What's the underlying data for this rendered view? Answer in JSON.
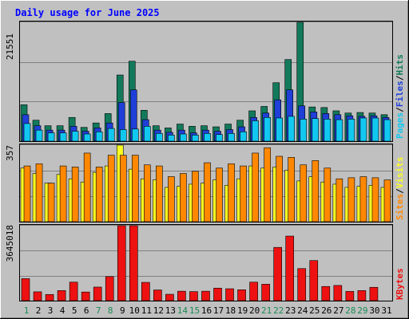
{
  "title": "Daily usage for June 2025",
  "colors": {
    "frame": "#c0c0c0",
    "plot": "#c0c0c0",
    "grid": "#808080",
    "title": "#0000ff",
    "axis_number": "#000000",
    "weekend_day": "#1a8c55",
    "hits": "#127a5b",
    "files": "#1f3fd8",
    "pages": "#12c8f0",
    "visits": "#ffff22",
    "sites": "#ff8800",
    "kbytes": "#ee1111",
    "separator": "#000000"
  },
  "chart_data": [
    {
      "type": "bar",
      "title": "Daily usage for June 2025",
      "categories": [
        "1",
        "2",
        "3",
        "4",
        "5",
        "6",
        "7",
        "8",
        "9",
        "10",
        "11",
        "12",
        "13",
        "14",
        "15",
        "16",
        "17",
        "18",
        "19",
        "20",
        "21",
        "22",
        "23",
        "24",
        "25",
        "26",
        "27",
        "28",
        "29",
        "30",
        "31"
      ],
      "weekend_days": [
        "1",
        "7",
        "8",
        "14",
        "15",
        "21",
        "22",
        "28",
        "29"
      ],
      "ymax_label": "21551",
      "ylim": [
        0,
        21551
      ],
      "legend": [
        {
          "label": "Hits",
          "color": "#127a5b"
        },
        {
          "label": "/",
          "color": "#000000"
        },
        {
          "label": "Files",
          "color": "#1f3fd8"
        },
        {
          "label": "/",
          "color": "#000000"
        },
        {
          "label": "Pages",
          "color": "#12c8f0"
        }
      ],
      "series": [
        {
          "name": "Hits",
          "values": [
            6600,
            3800,
            2800,
            2800,
            4300,
            2500,
            3300,
            5000,
            12000,
            14500,
            5600,
            2800,
            2400,
            3100,
            2700,
            2800,
            2600,
            3100,
            3800,
            5500,
            6300,
            10600,
            14800,
            21551,
            6200,
            6100,
            5500,
            5100,
            5200,
            5100,
            4800
          ]
        },
        {
          "name": "Files",
          "values": [
            4800,
            2800,
            2000,
            2000,
            2700,
            1800,
            2400,
            3300,
            7000,
            9300,
            3900,
            2000,
            1600,
            2000,
            1500,
            2000,
            1800,
            2100,
            2600,
            4300,
            5100,
            7500,
            9300,
            6400,
            5300,
            5000,
            4800,
            4600,
            4500,
            4600,
            4300
          ]
        },
        {
          "name": "Pages",
          "values": [
            3200,
            2000,
            1500,
            1500,
            1800,
            1300,
            1700,
            2300,
            2100,
            2200,
            2700,
            1400,
            1100,
            1300,
            1100,
            1400,
            1200,
            1400,
            1700,
            3700,
            4300,
            4200,
            4500,
            4000,
            4100,
            4000,
            3900,
            4000,
            4200,
            4200,
            3900
          ]
        }
      ],
      "grid": true
    },
    {
      "type": "bar",
      "categories": [
        "1",
        "2",
        "3",
        "4",
        "5",
        "6",
        "7",
        "8",
        "9",
        "10",
        "11",
        "12",
        "13",
        "14",
        "15",
        "16",
        "17",
        "18",
        "19",
        "20",
        "21",
        "22",
        "23",
        "24",
        "25",
        "26",
        "27",
        "28",
        "29",
        "30",
        "31"
      ],
      "ymax_label": "357",
      "ylim": [
        0,
        357
      ],
      "legend": [
        {
          "label": "Visits",
          "color": "#ffff22"
        },
        {
          "label": "/",
          "color": "#000000"
        },
        {
          "label": "Sites",
          "color": "#ff8800"
        }
      ],
      "series": [
        {
          "name": "Visits",
          "values": [
            250,
            225,
            180,
            220,
            200,
            185,
            230,
            260,
            357,
            245,
            200,
            195,
            160,
            165,
            175,
            180,
            195,
            170,
            200,
            260,
            250,
            255,
            240,
            190,
            210,
            185,
            175,
            160,
            165,
            170,
            160
          ]
        },
        {
          "name": "Sites",
          "values": [
            260,
            270,
            180,
            260,
            255,
            320,
            255,
            310,
            310,
            310,
            265,
            260,
            210,
            225,
            235,
            275,
            250,
            270,
            260,
            320,
            345,
            305,
            300,
            265,
            285,
            250,
            200,
            205,
            210,
            205,
            195
          ]
        }
      ],
      "grid": true
    },
    {
      "type": "bar",
      "categories": [
        "1",
        "2",
        "3",
        "4",
        "5",
        "6",
        "7",
        "8",
        "9",
        "10",
        "11",
        "12",
        "13",
        "14",
        "15",
        "16",
        "17",
        "18",
        "19",
        "20",
        "21",
        "22",
        "23",
        "24",
        "25",
        "26",
        "27",
        "28",
        "29",
        "30",
        "31"
      ],
      "ymax_label": "3645018",
      "ylim": [
        0,
        3645018
      ],
      "legend": [
        {
          "label": "KBytes",
          "color": "#ee1111"
        }
      ],
      "series": [
        {
          "name": "KBytes",
          "values": [
            1070000,
            430000,
            300000,
            490000,
            900000,
            420000,
            660000,
            1170000,
            3645018,
            3645018,
            890000,
            520000,
            310000,
            460000,
            440000,
            460000,
            610000,
            580000,
            530000,
            900000,
            800000,
            2590000,
            3140000,
            1560000,
            1950000,
            690000,
            740000,
            450000,
            490000,
            650000,
            0
          ]
        }
      ],
      "grid": true
    }
  ]
}
